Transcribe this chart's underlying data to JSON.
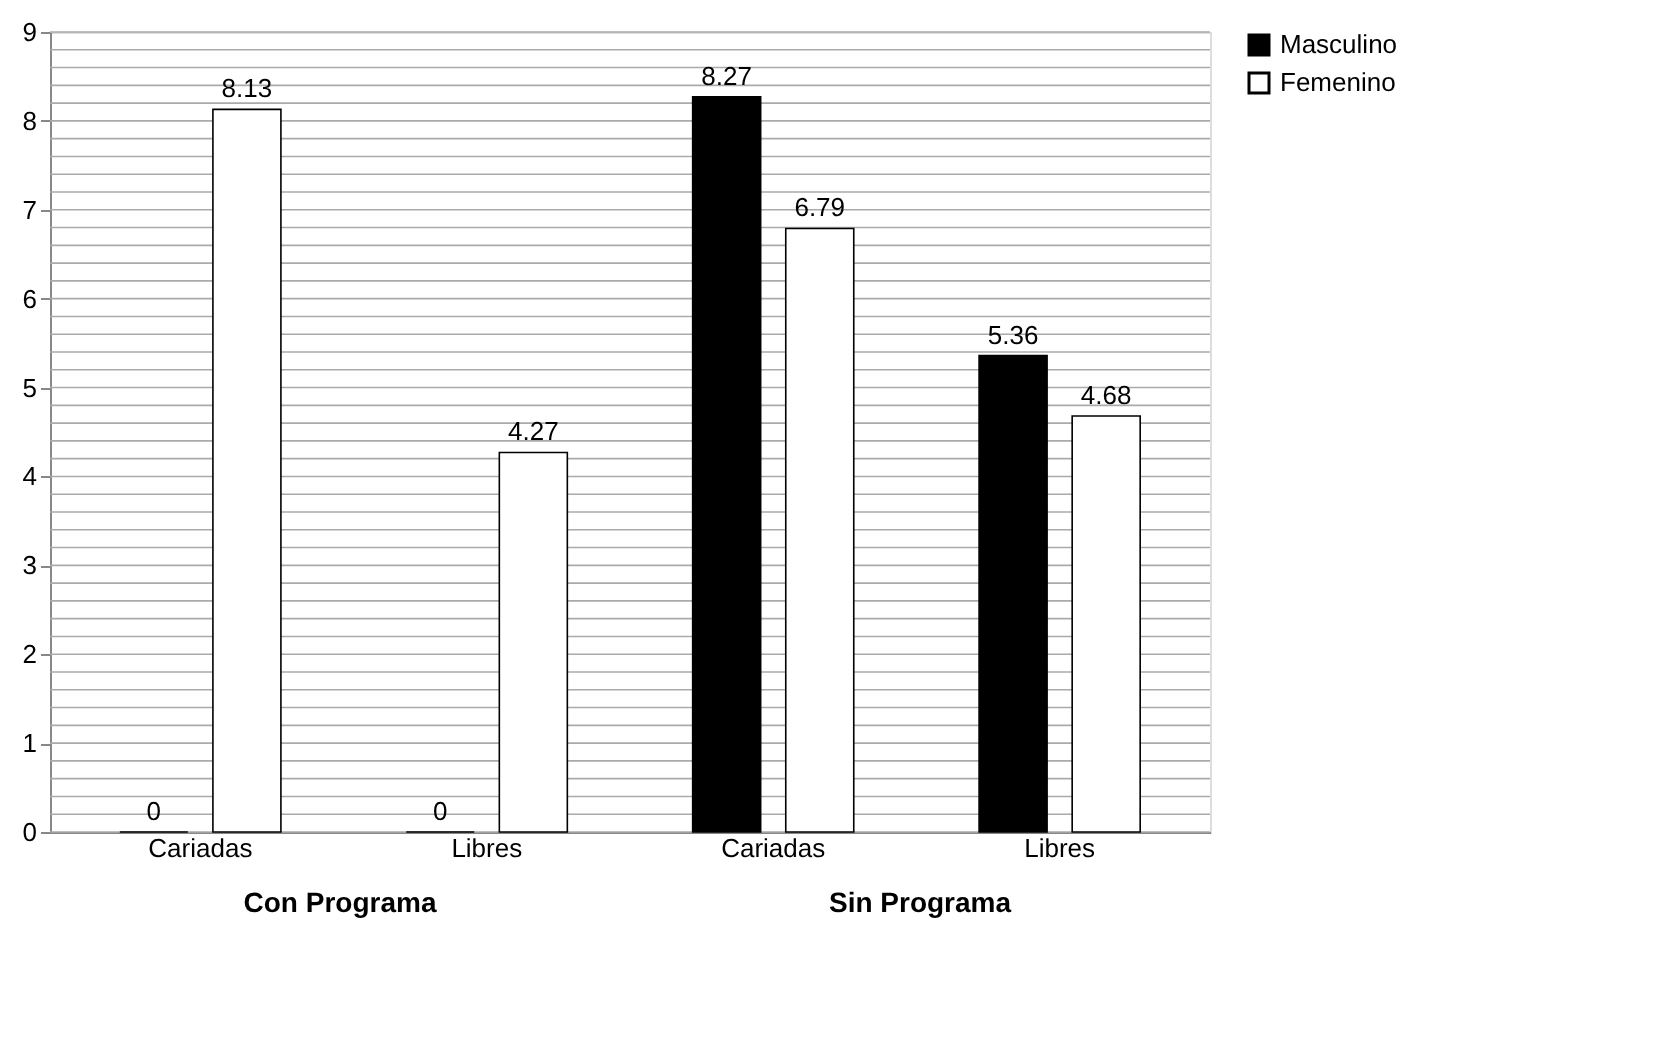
{
  "chart_data": {
    "type": "bar",
    "categories": [
      "Cariadas",
      "Libres",
      "Cariadas",
      "Libres"
    ],
    "series": [
      {
        "name": "Masculino",
        "color": "#000000",
        "values": [
          0,
          0,
          8.27,
          5.36
        ]
      },
      {
        "name": "Femenino",
        "color": "#ffffff",
        "values": [
          8.13,
          4.27,
          6.79,
          4.68
        ]
      }
    ],
    "annotations": [
      "Con Programa",
      "Sin Programa"
    ],
    "ylim": [
      0,
      9
    ],
    "yticks": [
      0,
      {
        "value": 0.2,
        "label": null
      },
      {
        "value": 0.4,
        "label": null
      },
      {
        "value": 0.6,
        "label": null
      },
      {
        "value": 0.8,
        "label": null
      },
      1,
      {
        "value": 1.2,
        "label": null
      },
      {
        "value": 1.4,
        "label": null
      },
      {
        "value": 1.6,
        "label": null
      },
      {
        "value": 1.8,
        "label": null
      },
      2,
      {
        "value": 2.2,
        "label": null
      },
      {
        "value": 2.4,
        "label": null
      },
      {
        "value": 2.6,
        "label": null
      },
      {
        "value": 2.8,
        "label": null
      },
      3,
      {
        "value": 3.2,
        "label": null
      },
      {
        "value": 3.4,
        "label": null
      },
      {
        "value": 3.6,
        "label": null
      },
      {
        "value": 3.8,
        "label": null
      },
      4,
      {
        "value": 4.2,
        "label": null
      },
      {
        "value": 4.4,
        "label": null
      },
      {
        "value": 4.6,
        "label": null
      },
      {
        "value": 4.8,
        "label": null
      },
      5,
      {
        "value": 5.2,
        "label": null
      },
      {
        "value": 5.4,
        "label": null
      },
      {
        "value": 5.6,
        "label": null
      },
      {
        "value": 5.8,
        "label": null
      },
      6,
      {
        "value": 6.2,
        "label": null
      },
      {
        "value": 6.4,
        "label": null
      },
      {
        "value": 6.6,
        "label": null
      },
      {
        "value": 6.8,
        "label": null
      },
      7,
      {
        "value": 7.2,
        "label": null
      },
      {
        "value": 7.4,
        "label": null
      },
      {
        "value": 7.6,
        "label": null
      },
      {
        "value": 7.8,
        "label": null
      },
      8,
      {
        "value": 8.2,
        "label": null
      },
      {
        "value": 8.4,
        "label": null
      },
      {
        "value": 8.6,
        "label": null
      },
      {
        "value": 8.8,
        "label": null
      },
      9
    ],
    "grid": "y",
    "legend": "right",
    "data_labels": true
  }
}
